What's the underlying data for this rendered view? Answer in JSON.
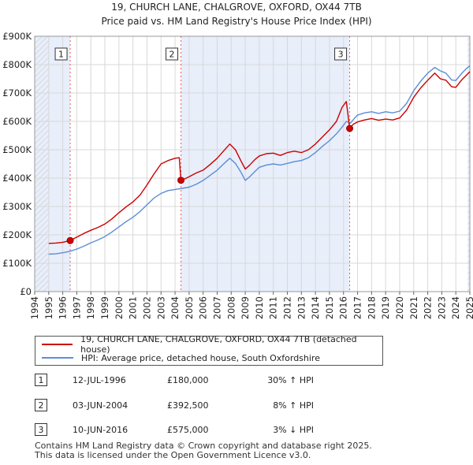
{
  "chart_data": {
    "type": "line",
    "title": "19, CHURCH LANE, CHALGROVE, OXFORD, OX44 7TB",
    "subtitle": "Price paid vs. HM Land Registry's House Price Index (HPI)",
    "ylim": [
      0,
      900000
    ],
    "xlim": [
      1994.0,
      2025.0
    ],
    "y_ticks": [
      {
        "value": 0,
        "label": "£0"
      },
      {
        "value": 100000,
        "label": "£100K"
      },
      {
        "value": 200000,
        "label": "£200K"
      },
      {
        "value": 300000,
        "label": "£300K"
      },
      {
        "value": 400000,
        "label": "£400K"
      },
      {
        "value": 500000,
        "label": "£500K"
      },
      {
        "value": 600000,
        "label": "£600K"
      },
      {
        "value": 700000,
        "label": "£700K"
      },
      {
        "value": 800000,
        "label": "£800K"
      },
      {
        "value": 900000,
        "label": "£900K"
      }
    ],
    "x_ticks": [
      "1994",
      "1995",
      "1996",
      "1997",
      "1998",
      "1999",
      "2000",
      "2001",
      "2002",
      "2003",
      "2004",
      "2005",
      "2006",
      "2007",
      "2008",
      "2009",
      "2010",
      "2011",
      "2012",
      "2013",
      "2014",
      "2015",
      "2016",
      "2017",
      "2018",
      "2019",
      "2020",
      "2021",
      "2022",
      "2023",
      "2024",
      "2025"
    ],
    "grid": true,
    "series": [
      {
        "name": "19, CHURCH LANE, CHALGROVE, OXFORD, OX44 7TB (detached house)",
        "color": "#cc0000",
        "x": [
          1995.0,
          1995.5,
          1996.0,
          1996.53,
          1997.0,
          1997.5,
          1998.0,
          1998.5,
          1999.0,
          1999.5,
          2000.0,
          2000.5,
          2001.0,
          2001.5,
          2002.0,
          2002.5,
          2003.0,
          2003.5,
          2004.0,
          2004.3,
          2004.42,
          2004.6,
          2005.0,
          2005.5,
          2006.0,
          2006.5,
          2007.0,
          2007.5,
          2007.9,
          2008.3,
          2008.7,
          2009.0,
          2009.3,
          2009.7,
          2010.0,
          2010.5,
          2011.0,
          2011.5,
          2012.0,
          2012.5,
          2013.0,
          2013.5,
          2014.0,
          2014.5,
          2015.0,
          2015.5,
          2015.9,
          2016.2,
          2016.44,
          2016.7,
          2017.0,
          2017.5,
          2018.0,
          2018.5,
          2019.0,
          2019.5,
          2020.0,
          2020.5,
          2021.0,
          2021.5,
          2022.0,
          2022.5,
          2022.9,
          2023.3,
          2023.7,
          2024.0,
          2024.4,
          2024.8,
          2025.0
        ],
        "values": [
          170000,
          171000,
          174000,
          180000,
          192000,
          205000,
          216000,
          226000,
          238000,
          256000,
          278000,
          298000,
          316000,
          340000,
          376000,
          415000,
          450000,
          462000,
          470000,
          472000,
          392500,
          395000,
          405000,
          418000,
          428000,
          448000,
          470000,
          498000,
          520000,
          500000,
          460000,
          432000,
          445000,
          466000,
          478000,
          486000,
          488000,
          480000,
          490000,
          495000,
          490000,
          500000,
          520000,
          545000,
          570000,
          600000,
          650000,
          670000,
          575000,
          590000,
          598000,
          605000,
          610000,
          604000,
          608000,
          605000,
          612000,
          640000,
          685000,
          718000,
          745000,
          770000,
          750000,
          745000,
          722000,
          720000,
          745000,
          765000,
          775000
        ]
      },
      {
        "name": "HPI: Average price, detached house, South Oxfordshire",
        "color": "#5b8ed6",
        "x": [
          1995.0,
          1995.5,
          1996.0,
          1996.5,
          1997.0,
          1997.5,
          1998.0,
          1998.5,
          1999.0,
          1999.5,
          2000.0,
          2000.5,
          2001.0,
          2001.5,
          2002.0,
          2002.5,
          2003.0,
          2003.5,
          2004.0,
          2004.5,
          2005.0,
          2005.5,
          2006.0,
          2006.5,
          2007.0,
          2007.5,
          2007.9,
          2008.3,
          2008.7,
          2009.0,
          2009.3,
          2009.7,
          2010.0,
          2010.5,
          2011.0,
          2011.5,
          2012.0,
          2012.5,
          2013.0,
          2013.5,
          2014.0,
          2014.5,
          2015.0,
          2015.5,
          2015.9,
          2016.2,
          2016.5,
          2016.8,
          2017.0,
          2017.5,
          2018.0,
          2018.5,
          2019.0,
          2019.5,
          2020.0,
          2020.5,
          2021.0,
          2021.5,
          2022.0,
          2022.5,
          2022.9,
          2023.3,
          2023.7,
          2024.0,
          2024.4,
          2024.8,
          2025.0
        ],
        "values": [
          132000,
          133000,
          137000,
          142000,
          150000,
          160000,
          172000,
          182000,
          194000,
          210000,
          228000,
          246000,
          262000,
          282000,
          306000,
          330000,
          346000,
          356000,
          360000,
          364000,
          368000,
          378000,
          392000,
          410000,
          428000,
          452000,
          470000,
          452000,
          420000,
          392000,
          404000,
          424000,
          438000,
          446000,
          450000,
          446000,
          452000,
          458000,
          462000,
          472000,
          490000,
          512000,
          532000,
          556000,
          580000,
          600000,
          594000,
          612000,
          622000,
          630000,
          634000,
          628000,
          634000,
          630000,
          636000,
          664000,
          708000,
          742000,
          770000,
          790000,
          778000,
          770000,
          746000,
          744000,
          768000,
          788000,
          796000
        ]
      }
    ],
    "sales": [
      {
        "label": "1",
        "x": 1996.53,
        "value": 180000
      },
      {
        "label": "2",
        "x": 2004.42,
        "value": 392500
      },
      {
        "label": "3",
        "x": 2016.44,
        "value": 575000
      }
    ],
    "shaded_ranges": [
      [
        1994.0,
        1996.53
      ],
      [
        2004.42,
        2016.44
      ],
      [
        2024.85,
        2025.0
      ]
    ],
    "hatched_ranges": [
      [
        1994.0,
        1995.0
      ],
      [
        2024.85,
        2025.0
      ]
    ]
  },
  "legend": {
    "price_paid_label": "19, CHURCH LANE, CHALGROVE, OXFORD, OX44 7TB (detached house)",
    "hpi_label": "HPI: Average price, detached house, South Oxfordshire"
  },
  "sales_table": [
    {
      "num": "1",
      "date": "12-JUL-1996",
      "price": "£180,000",
      "hpi": "30% ↑ HPI"
    },
    {
      "num": "2",
      "date": "03-JUN-2004",
      "price": "£392,500",
      "hpi": "8% ↑ HPI"
    },
    {
      "num": "3",
      "date": "10-JUN-2016",
      "price": "£575,000",
      "hpi": "3% ↓ HPI"
    }
  ],
  "footer": {
    "line1": "Contains HM Land Registry data © Crown copyright and database right 2025.",
    "line2": "This data is licensed under the Open Government Licence v3.0."
  },
  "colors": {
    "price_line": "#cc0000",
    "hpi_line": "#5b8ed6",
    "shade": "#e8eefa",
    "marker_line": "#e06060"
  }
}
